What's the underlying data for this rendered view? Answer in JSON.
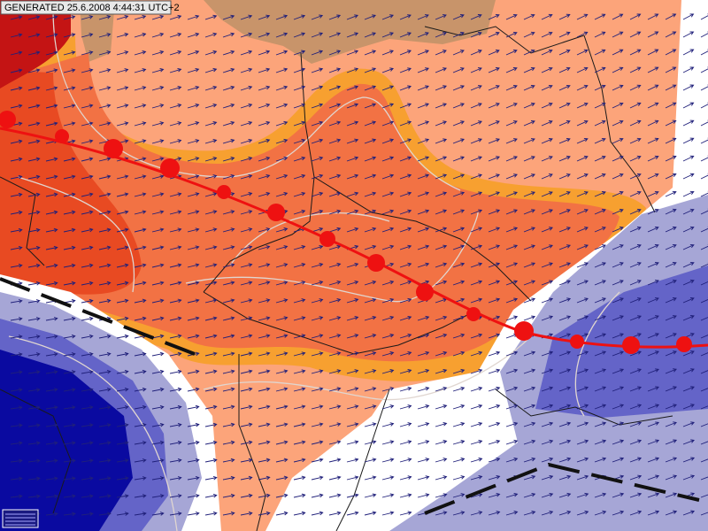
{
  "header": {
    "timestamp": "GENERATED 25.6.2008 4:44:31 UTC+2"
  }
}
